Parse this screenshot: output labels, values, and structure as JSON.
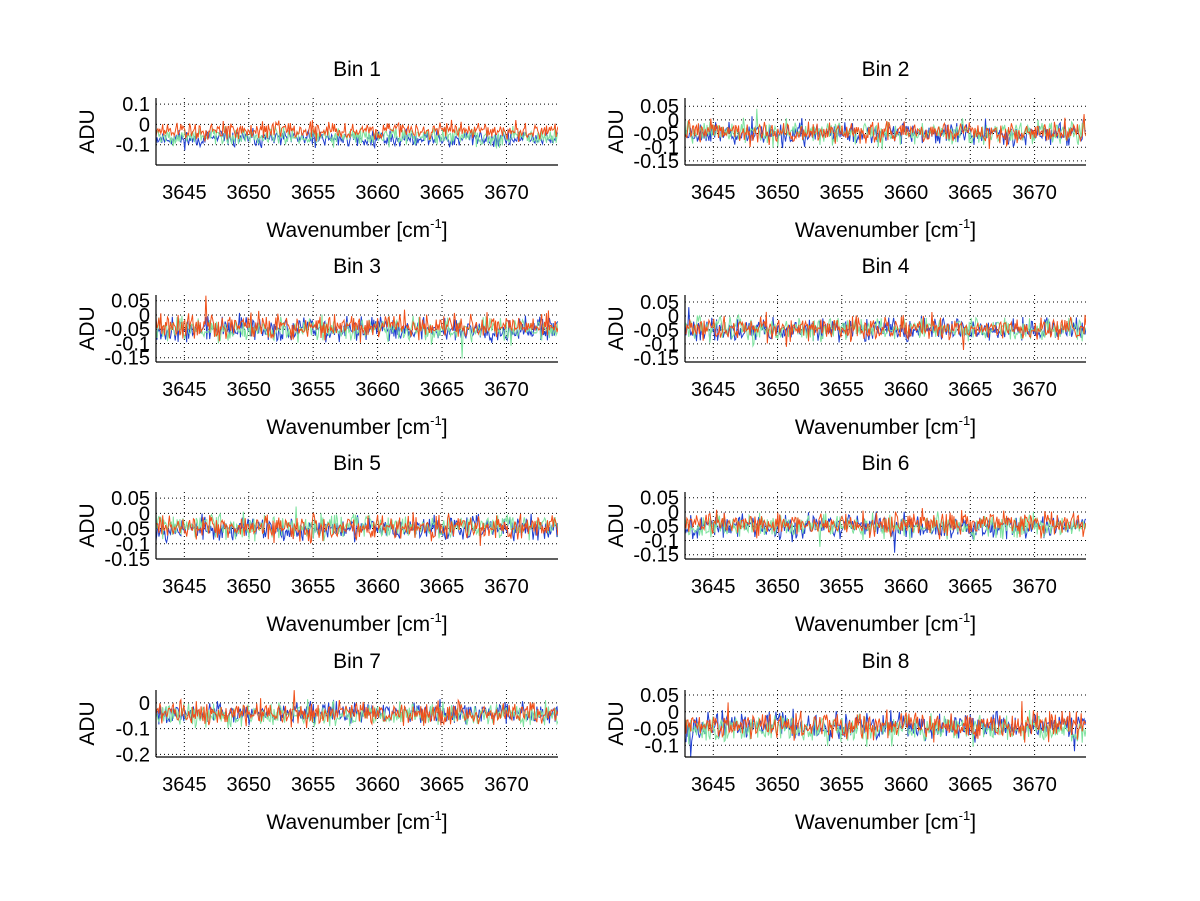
{
  "chart_data": {
    "type": "line",
    "layout": "4x2 subplot grid",
    "series_colors": [
      "#1f3fd0",
      "#7fe39f",
      "#f0501a"
    ],
    "plots": [
      {
        "title": "Bin 1",
        "xlabel": "Wavenumber [cm",
        "xlabel_sup": "-1",
        "xlabel_end": "]",
        "ylabel": "ADU",
        "xlim": [
          3642.8,
          3674.0
        ],
        "ylim": [
          -0.2,
          0.13
        ],
        "xticks": [
          3645,
          3650,
          3655,
          3660,
          3665,
          3670
        ],
        "xtick_labels": [
          "3645",
          "3650",
          "3655",
          "3660",
          "3665",
          "3670"
        ],
        "yticks": [
          0.1,
          0,
          -0.1
        ],
        "ytick_labels": [
          "0.1",
          "0",
          "-0.1"
        ],
        "series_means": [
          -0.07,
          -0.06,
          -0.03
        ],
        "noise": 0.03,
        "seed": 11
      },
      {
        "title": "Bin 2",
        "xlabel": "Wavenumber [cm",
        "xlabel_sup": "-1",
        "xlabel_end": "]",
        "ylabel": "ADU",
        "xlim": [
          3642.8,
          3674.0
        ],
        "ylim": [
          -0.165,
          0.08
        ],
        "xticks": [
          3645,
          3650,
          3655,
          3660,
          3665,
          3670
        ],
        "xtick_labels": [
          "3645",
          "3650",
          "3655",
          "3660",
          "3665",
          "3670"
        ],
        "yticks": [
          0.05,
          0,
          -0.05,
          -0.1,
          -0.15
        ],
        "ytick_labels": [
          "0.05",
          "0",
          "-0.05",
          "-0.1",
          "-0.15"
        ],
        "series_means": [
          -0.05,
          -0.045,
          -0.045
        ],
        "noise": 0.028,
        "seed": 23
      },
      {
        "title": "Bin 3",
        "xlabel": "Wavenumber [cm",
        "xlabel_sup": "-1",
        "xlabel_end": "]",
        "ylabel": "ADU",
        "xlim": [
          3642.8,
          3674.0
        ],
        "ylim": [
          -0.165,
          0.07
        ],
        "xticks": [
          3645,
          3650,
          3655,
          3660,
          3665,
          3670
        ],
        "xtick_labels": [
          "3645",
          "3650",
          "3655",
          "3660",
          "3665",
          "3670"
        ],
        "yticks": [
          0.05,
          0,
          -0.05,
          -0.1,
          -0.15
        ],
        "ytick_labels": [
          "0.05",
          "0",
          "-0.05",
          "-0.1",
          "-0.15"
        ],
        "series_means": [
          -0.05,
          -0.05,
          -0.04
        ],
        "noise": 0.03,
        "seed": 37
      },
      {
        "title": "Bin 4",
        "xlabel": "Wavenumber [cm",
        "xlabel_sup": "-1",
        "xlabel_end": "]",
        "ylabel": "ADU",
        "xlim": [
          3642.8,
          3674.0
        ],
        "ylim": [
          -0.165,
          0.075
        ],
        "xticks": [
          3645,
          3650,
          3655,
          3660,
          3665,
          3670
        ],
        "xtick_labels": [
          "3645",
          "3650",
          "3655",
          "3660",
          "3665",
          "3670"
        ],
        "yticks": [
          0.05,
          0,
          -0.05,
          -0.1,
          -0.15
        ],
        "ytick_labels": [
          "0.05",
          "0",
          "-0.05",
          "-0.1",
          "-0.15"
        ],
        "series_means": [
          -0.05,
          -0.045,
          -0.045
        ],
        "noise": 0.028,
        "seed": 41
      },
      {
        "title": "Bin 5",
        "xlabel": "Wavenumber [cm",
        "xlabel_sup": "-1",
        "xlabel_end": "]",
        "ylabel": "ADU",
        "xlim": [
          3642.8,
          3674.0
        ],
        "ylim": [
          -0.15,
          0.07
        ],
        "xticks": [
          3645,
          3650,
          3655,
          3660,
          3665,
          3670
        ],
        "xtick_labels": [
          "3645",
          "3650",
          "3655",
          "3660",
          "3665",
          "3670"
        ],
        "yticks": [
          0.05,
          0,
          -0.05,
          -0.1,
          -0.15
        ],
        "ytick_labels": [
          "0.05",
          "0",
          "-0.05",
          "-0.1",
          "-0.15"
        ],
        "series_means": [
          -0.05,
          -0.04,
          -0.045
        ],
        "noise": 0.028,
        "seed": 53
      },
      {
        "title": "Bin 6",
        "xlabel": "Wavenumber [cm",
        "xlabel_sup": "-1",
        "xlabel_end": "]",
        "ylabel": "ADU",
        "xlim": [
          3642.8,
          3674.0
        ],
        "ylim": [
          -0.165,
          0.07
        ],
        "xticks": [
          3645,
          3650,
          3655,
          3660,
          3665,
          3670
        ],
        "xtick_labels": [
          "3645",
          "3650",
          "3655",
          "3660",
          "3665",
          "3670"
        ],
        "yticks": [
          0.05,
          0,
          -0.05,
          -0.1,
          -0.15
        ],
        "ytick_labels": [
          "0.05",
          "0",
          "-0.05",
          "-0.1",
          "-0.15"
        ],
        "series_means": [
          -0.05,
          -0.05,
          -0.04
        ],
        "noise": 0.028,
        "seed": 67
      },
      {
        "title": "Bin 7",
        "xlabel": "Wavenumber [cm",
        "xlabel_sup": "-1",
        "xlabel_end": "]",
        "ylabel": "ADU",
        "xlim": [
          3642.8,
          3674.0
        ],
        "ylim": [
          -0.21,
          0.05
        ],
        "xticks": [
          3645,
          3650,
          3655,
          3660,
          3665,
          3670
        ],
        "xtick_labels": [
          "3645",
          "3650",
          "3655",
          "3660",
          "3665",
          "3670"
        ],
        "yticks": [
          0,
          -0.1,
          -0.2
        ],
        "ytick_labels": [
          "0",
          "-0.1",
          "-0.2"
        ],
        "series_means": [
          -0.04,
          -0.045,
          -0.04
        ],
        "noise": 0.03,
        "seed": 79
      },
      {
        "title": "Bin 8",
        "xlabel": "Wavenumber [cm",
        "xlabel_sup": "-1",
        "xlabel_end": "]",
        "ylabel": "ADU",
        "xlim": [
          3642.8,
          3674.0
        ],
        "ylim": [
          -0.135,
          0.065
        ],
        "xticks": [
          3645,
          3650,
          3655,
          3660,
          3665,
          3670
        ],
        "xtick_labels": [
          "3645",
          "3650",
          "3655",
          "3660",
          "3665",
          "3670"
        ],
        "yticks": [
          0.05,
          0,
          -0.05,
          -0.1
        ],
        "ytick_labels": [
          "0.05",
          "0",
          "-0.05",
          "-0.1"
        ],
        "series_means": [
          -0.045,
          -0.05,
          -0.04
        ],
        "noise": 0.028,
        "seed": 97
      }
    ]
  }
}
